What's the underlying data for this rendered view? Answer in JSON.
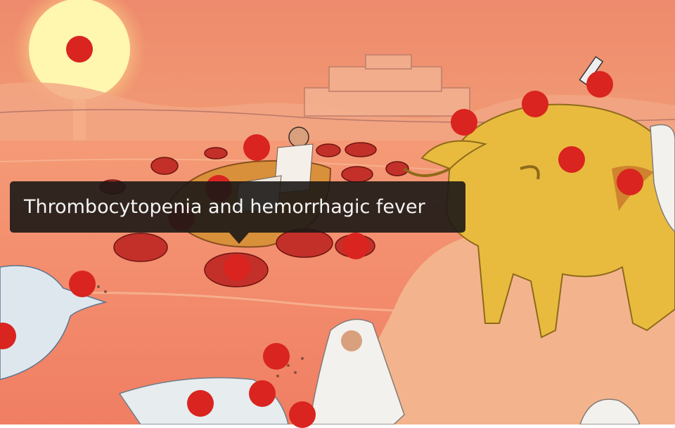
{
  "tooltip": {
    "text": "Thrombocytopenia and hemorrhagic fever"
  },
  "colors": {
    "hotspot": "#d9241f",
    "tooltip_bg": "#1c1816",
    "sky_top": "#f08b6a",
    "sky_bottom": "#f6b07c",
    "water": "#f2a07a",
    "ground": "#f3b58e",
    "buffalo": "#e6b83c",
    "sun": "#fff3a8"
  },
  "hotspots": [
    {
      "name": "hotspot-sun"
    },
    {
      "name": "hotspot-syringe"
    },
    {
      "name": "hotspot-buffalo-back"
    },
    {
      "name": "hotspot-buffalo-horn"
    },
    {
      "name": "hotspot-buffalo-body"
    },
    {
      "name": "hotspot-buffalo-liver"
    },
    {
      "name": "hotspot-patient-boat"
    },
    {
      "name": "hotspot-blood-cell-left"
    },
    {
      "name": "hotspot-blood-cell-center"
    },
    {
      "name": "hotspot-blood-cell-right"
    },
    {
      "name": "hotspot-heron-head"
    },
    {
      "name": "hotspot-left-edge"
    },
    {
      "name": "hotspot-ticks"
    },
    {
      "name": "hotspot-bird-bottom"
    },
    {
      "name": "hotspot-worker-hand"
    },
    {
      "name": "hotspot-worker-bird"
    },
    {
      "name": "hotspot-bottom-center"
    }
  ]
}
